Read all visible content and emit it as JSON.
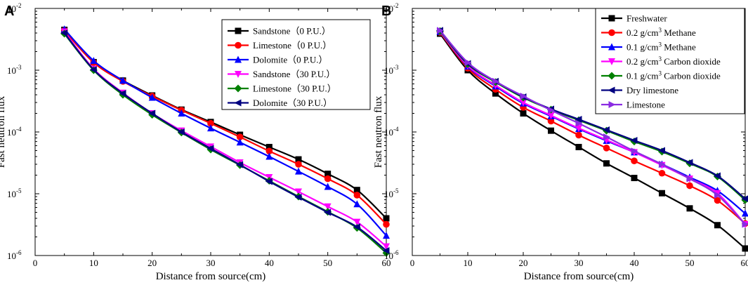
{
  "chart_data": [
    {
      "type": "line",
      "panel_label": "A",
      "xlabel": "Distance from source(cm)",
      "ylabel": "Fast neutron flux",
      "xlim": [
        0,
        60
      ],
      "x_ticks": [
        "0",
        "10",
        "20",
        "30",
        "40",
        "50",
        "60"
      ],
      "yscale": "log",
      "ylim": [
        1e-06,
        0.01
      ],
      "y_ticks": [
        {
          "base": "10",
          "exp": "-6"
        },
        {
          "base": "10",
          "exp": "-5"
        },
        {
          "base": "10",
          "exp": "-4"
        },
        {
          "base": "10",
          "exp": "-3"
        },
        {
          "base": "10",
          "exp": "-2"
        }
      ],
      "legend_position": "top-right",
      "x": [
        5,
        10,
        15,
        20,
        25,
        30,
        35,
        40,
        45,
        50,
        55,
        60
      ],
      "series": [
        {
          "name": "Sandstone（0 P.U.）",
          "color": "#000000",
          "marker": "square",
          "values": [
            0.0045,
            0.00135,
            0.00068,
            0.00039,
            0.00023,
            0.000145,
            9e-05,
            5.7e-05,
            3.6e-05,
            2.1e-05,
            1.15e-05,
            4e-06
          ]
        },
        {
          "name": "Limestone（0 P.U.）",
          "color": "#ff0000",
          "marker": "circle",
          "values": [
            0.0044,
            0.00133,
            0.00066,
            0.00038,
            0.000225,
            0.000138,
            8.3e-05,
            4.9e-05,
            3e-05,
            1.75e-05,
            9.5e-06,
            3.2e-06
          ]
        },
        {
          "name": "Dolomite（0 P.U.）",
          "color": "#0000ff",
          "marker": "triangle-up",
          "values": [
            0.0046,
            0.00142,
            0.00068,
            0.00036,
            0.0002,
            0.000115,
            6.8e-05,
            4e-05,
            2.3e-05,
            1.3e-05,
            6.8e-06,
            2.1e-06
          ]
        },
        {
          "name": "Sandstone（30 P.U.）",
          "color": "#ff00ff",
          "marker": "triangle-down",
          "values": [
            0.0042,
            0.00105,
            0.00043,
            0.0002,
            0.000105,
            5.8e-05,
            3.2e-05,
            1.85e-05,
            1.08e-05,
            6.2e-06,
            3.5e-06,
            1.4e-06
          ]
        },
        {
          "name": "Limestone（30 P.U.）",
          "color": "#008000",
          "marker": "diamond",
          "values": [
            0.0039,
            0.001,
            0.0004,
            0.00019,
            9.8e-05,
            5.2e-05,
            2.9e-05,
            1.62e-05,
            9e-06,
            5.1e-06,
            2.8e-06,
            1.1e-06
          ]
        },
        {
          "name": "Dolomite（30 P.U.）",
          "color": "#000080",
          "marker": "triangle-left",
          "values": [
            0.004,
            0.00102,
            0.00042,
            0.0002,
            0.0001,
            5.4e-05,
            2.95e-05,
            1.58e-05,
            8.8e-06,
            5e-06,
            2.9e-06,
            1.2e-06
          ]
        }
      ]
    },
    {
      "type": "line",
      "panel_label": "B",
      "xlabel": "Distance from source(cm)",
      "ylabel": "Fast neutron flux",
      "xlim": [
        0,
        60
      ],
      "x_ticks": [
        "0",
        "10",
        "20",
        "30",
        "40",
        "50",
        "60"
      ],
      "yscale": "log",
      "ylim": [
        1e-06,
        0.01
      ],
      "y_ticks": [
        {
          "base": "10",
          "exp": "-6"
        },
        {
          "base": "10",
          "exp": "-5"
        },
        {
          "base": "10",
          "exp": "-4"
        },
        {
          "base": "10",
          "exp": "-3"
        },
        {
          "base": "10",
          "exp": "-2"
        }
      ],
      "legend_position": "top-right",
      "x": [
        5,
        10,
        15,
        20,
        25,
        30,
        35,
        40,
        45,
        50,
        55,
        60
      ],
      "series": [
        {
          "name": "Freshwater",
          "name_parts": [
            "Freshwater"
          ],
          "color": "#000000",
          "marker": "square",
          "values": [
            0.0039,
            0.001,
            0.00042,
            0.0002,
            0.000105,
            5.7e-05,
            3.1e-05,
            1.8e-05,
            1.02e-05,
            5.8e-06,
            3.1e-06,
            1.3e-06
          ]
        },
        {
          "name": "0.2 g/cm3 Methane",
          "name_parts": [
            "0.2 g/cm",
            "3",
            " Methane"
          ],
          "color": "#ff0000",
          "marker": "circle",
          "values": [
            0.0041,
            0.00108,
            0.00049,
            0.00025,
            0.00015,
            8.9e-05,
            5.5e-05,
            3.4e-05,
            2.15e-05,
            1.35e-05,
            7.8e-06,
            3.3e-06
          ]
        },
        {
          "name": "0.1 g/cm3 Methane",
          "name_parts": [
            "0.1 g/cm",
            "3",
            " Methane"
          ],
          "color": "#0000ff",
          "marker": "triangle-up",
          "values": [
            0.0042,
            0.00115,
            0.00055,
            0.00029,
            0.00018,
            0.000112,
            7.2e-05,
            4.7e-05,
            3e-05,
            1.85e-05,
            1.12e-05,
            4.8e-06
          ]
        },
        {
          "name": "0.2 g/cm3 Carbon dioxide",
          "name_parts": [
            "0.2 g/cm",
            "3",
            " Carbon dioxide"
          ],
          "color": "#ff00ff",
          "marker": "triangle-down",
          "values": [
            0.0042,
            0.00118,
            0.00057,
            0.0003,
            0.000185,
            0.000115,
            7.4e-05,
            4.7e-05,
            2.9e-05,
            1.75e-05,
            1.02e-05,
            3.2e-06
          ]
        },
        {
          "name": "0.1 g/cm3 Carbon dioxide",
          "name_parts": [
            "0.1 g/cm",
            "3",
            " Carbon dioxide"
          ],
          "color": "#008000",
          "marker": "diamond",
          "values": [
            0.0043,
            0.00125,
            0.00064,
            0.00036,
            0.00023,
            0.000155,
            0.000105,
            7e-05,
            4.8e-05,
            3.1e-05,
            1.9e-05,
            7.9e-06
          ]
        },
        {
          "name": "Dry limestone",
          "name_parts": [
            "Dry limestone"
          ],
          "color": "#000080",
          "marker": "triangle-left",
          "values": [
            0.0044,
            0.00128,
            0.00066,
            0.00037,
            0.000235,
            0.00016,
            0.000108,
            7.3e-05,
            5e-05,
            3.2e-05,
            1.95e-05,
            8.3e-06
          ]
        },
        {
          "name": "Limestone",
          "name_parts": [
            "Limestone"
          ],
          "color": "#8a2be2",
          "marker": "triangle-right",
          "values": [
            0.0044,
            0.00133,
            0.00066,
            0.00038,
            0.000225,
            0.000138,
            8.3e-05,
            4.9e-05,
            3e-05,
            1.75e-05,
            9.5e-06,
            3.2e-06
          ]
        }
      ]
    }
  ]
}
